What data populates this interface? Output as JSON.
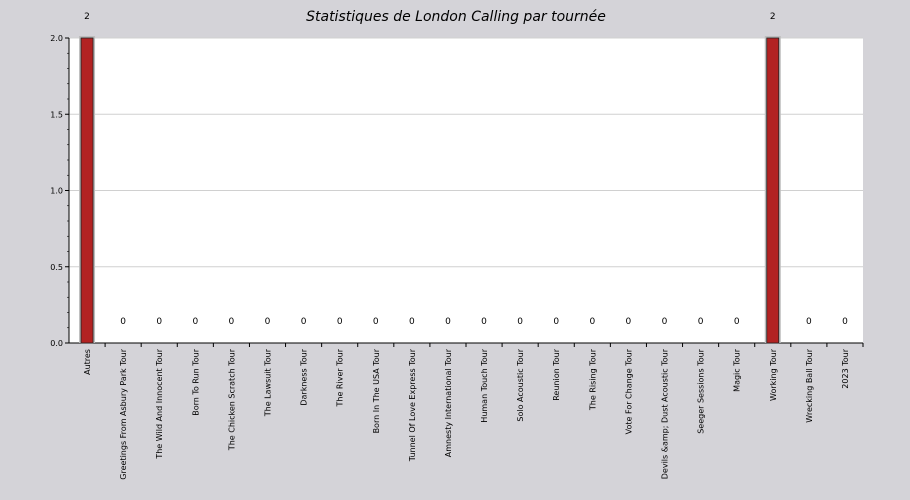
{
  "chart_data": {
    "type": "bar",
    "title": "Statistiques de London Calling par tournée",
    "xlabel": "",
    "ylabel": "",
    "ylim": [
      0,
      2
    ],
    "yticks": [
      "0.0",
      "0.5",
      "1.0",
      "1.5",
      "2.0"
    ],
    "grid": true,
    "categories": [
      "Autres",
      "Greetings From Asbury Park Tour",
      "The Wild And Innocent Tour",
      "Born To Run Tour",
      "The Chicken Scratch Tour",
      "The Lawsuit Tour",
      "Darkness Tour",
      "The River Tour",
      "Born In The USA Tour",
      "Tunnel Of Love Express Tour",
      "Amnesty International Tour",
      "Human Touch Tour",
      "Solo Acoustic Tour",
      "Reunion Tour",
      "The Rising Tour",
      "Vote For Change Tour",
      "Devils &amp; Dust Acoustic Tour",
      "Seeger Sessions Tour",
      "Magic Tour",
      "Working Tour",
      "Wrecking Ball Tour",
      "2023 Tour"
    ],
    "values": [
      2,
      0,
      0,
      0,
      0,
      0,
      0,
      0,
      0,
      0,
      0,
      0,
      0,
      0,
      0,
      0,
      0,
      0,
      0,
      2,
      0,
      0
    ],
    "bar_color": "#b22222",
    "plot_background": "#ffffff",
    "page_background": "#d4d3d8"
  }
}
